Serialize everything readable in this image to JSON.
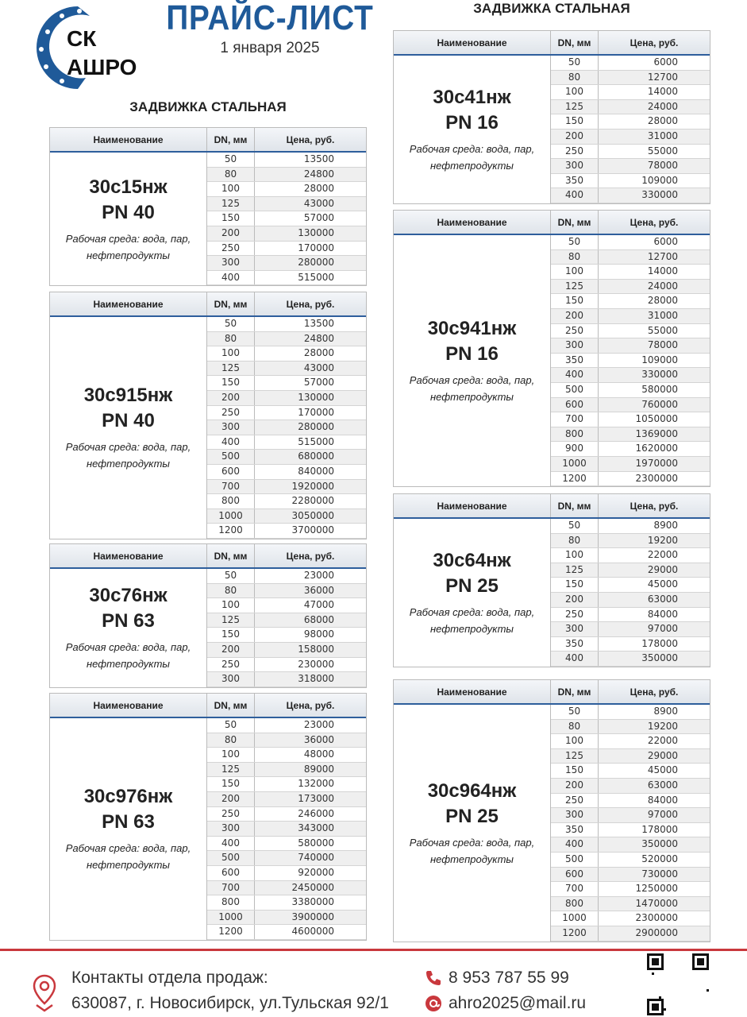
{
  "header": {
    "logo_text": "СК АШРО",
    "title": "ПРАЙС-ЛИСТ",
    "date": "1 января 2025"
  },
  "sections": {
    "left": "ЗАДВИЖКА СТАЛЬНАЯ",
    "right": "ЗАДВИЖКА СТАЛЬНАЯ"
  },
  "columns": {
    "name": "Наименование",
    "dn": "DN, мм",
    "price": "Цена, руб."
  },
  "description": [
    "Рабочая среда: вода, пар,",
    "нефтепродукты"
  ],
  "tables": [
    {
      "model": "30с15нж",
      "pn": "PN 40",
      "rows": [
        [
          "50",
          "13500"
        ],
        [
          "80",
          "24800"
        ],
        [
          "100",
          "28000"
        ],
        [
          "125",
          "43000"
        ],
        [
          "150",
          "57000"
        ],
        [
          "200",
          "130000"
        ],
        [
          "250",
          "170000"
        ],
        [
          "300",
          "280000"
        ],
        [
          "400",
          "515000"
        ]
      ]
    },
    {
      "model": "30с915нж",
      "pn": "PN 40",
      "rows": [
        [
          "50",
          "13500"
        ],
        [
          "80",
          "24800"
        ],
        [
          "100",
          "28000"
        ],
        [
          "125",
          "43000"
        ],
        [
          "150",
          "57000"
        ],
        [
          "200",
          "130000"
        ],
        [
          "250",
          "170000"
        ],
        [
          "300",
          "280000"
        ],
        [
          "400",
          "515000"
        ],
        [
          "500",
          "680000"
        ],
        [
          "600",
          "840000"
        ],
        [
          "700",
          "1920000"
        ],
        [
          "800",
          "2280000"
        ],
        [
          "1000",
          "3050000"
        ],
        [
          "1200",
          "3700000"
        ]
      ]
    },
    {
      "model": "30с76нж",
      "pn": "PN 63",
      "rows": [
        [
          "50",
          "23000"
        ],
        [
          "80",
          "36000"
        ],
        [
          "100",
          "47000"
        ],
        [
          "125",
          "68000"
        ],
        [
          "150",
          "98000"
        ],
        [
          "200",
          "158000"
        ],
        [
          "250",
          "230000"
        ],
        [
          "300",
          "318000"
        ]
      ]
    },
    {
      "model": "30с976нж",
      "pn": "PN 63",
      "rows": [
        [
          "50",
          "23000"
        ],
        [
          "80",
          "36000"
        ],
        [
          "100",
          "48000"
        ],
        [
          "125",
          "89000"
        ],
        [
          "150",
          "132000"
        ],
        [
          "200",
          "173000"
        ],
        [
          "250",
          "246000"
        ],
        [
          "300",
          "343000"
        ],
        [
          "400",
          "580000"
        ],
        [
          "500",
          "740000"
        ],
        [
          "600",
          "920000"
        ],
        [
          "700",
          "2450000"
        ],
        [
          "800",
          "3380000"
        ],
        [
          "1000",
          "3900000"
        ],
        [
          "1200",
          "4600000"
        ]
      ]
    },
    {
      "model": "30с41нж",
      "pn": "PN 16",
      "rows": [
        [
          "50",
          "6000"
        ],
        [
          "80",
          "12700"
        ],
        [
          "100",
          "14000"
        ],
        [
          "125",
          "24000"
        ],
        [
          "150",
          "28000"
        ],
        [
          "200",
          "31000"
        ],
        [
          "250",
          "55000"
        ],
        [
          "300",
          "78000"
        ],
        [
          "350",
          "109000"
        ],
        [
          "400",
          "330000"
        ]
      ]
    },
    {
      "model": "30с941нж",
      "pn": "PN 16",
      "rows": [
        [
          "50",
          "6000"
        ],
        [
          "80",
          "12700"
        ],
        [
          "100",
          "14000"
        ],
        [
          "125",
          "24000"
        ],
        [
          "150",
          "28000"
        ],
        [
          "200",
          "31000"
        ],
        [
          "250",
          "55000"
        ],
        [
          "300",
          "78000"
        ],
        [
          "350",
          "109000"
        ],
        [
          "400",
          "330000"
        ],
        [
          "500",
          "580000"
        ],
        [
          "600",
          "760000"
        ],
        [
          "700",
          "1050000"
        ],
        [
          "800",
          "1369000"
        ],
        [
          "900",
          "1620000"
        ],
        [
          "1000",
          "1970000"
        ],
        [
          "1200",
          "2300000"
        ]
      ]
    },
    {
      "model": "30с64нж",
      "pn": "PN 25",
      "rows": [
        [
          "50",
          "8900"
        ],
        [
          "80",
          "19200"
        ],
        [
          "100",
          "22000"
        ],
        [
          "125",
          "29000"
        ],
        [
          "150",
          "45000"
        ],
        [
          "200",
          "63000"
        ],
        [
          "250",
          "84000"
        ],
        [
          "300",
          "97000"
        ],
        [
          "350",
          "178000"
        ],
        [
          "400",
          "350000"
        ]
      ]
    },
    {
      "model": "30с964нж",
      "pn": "PN 25",
      "rows": [
        [
          "50",
          "8900"
        ],
        [
          "80",
          "19200"
        ],
        [
          "100",
          "22000"
        ],
        [
          "125",
          "29000"
        ],
        [
          "150",
          "45000"
        ],
        [
          "200",
          "63000"
        ],
        [
          "250",
          "84000"
        ],
        [
          "300",
          "97000"
        ],
        [
          "350",
          "178000"
        ],
        [
          "400",
          "350000"
        ],
        [
          "500",
          "520000"
        ],
        [
          "600",
          "730000"
        ],
        [
          "700",
          "1250000"
        ],
        [
          "800",
          "1470000"
        ],
        [
          "1000",
          "2300000"
        ],
        [
          "1200",
          "2900000"
        ]
      ]
    }
  ],
  "footer": {
    "contacts_label": "Контакты отдела продаж:",
    "address": "630087, г. Новосибирск, ул.Тульская 92/1",
    "phone": "8 953 787 55 99",
    "email": "ahro2025@mail.ru"
  },
  "colors": {
    "brand_blue": "#1f5a99",
    "accent_red": "#c9383d"
  }
}
